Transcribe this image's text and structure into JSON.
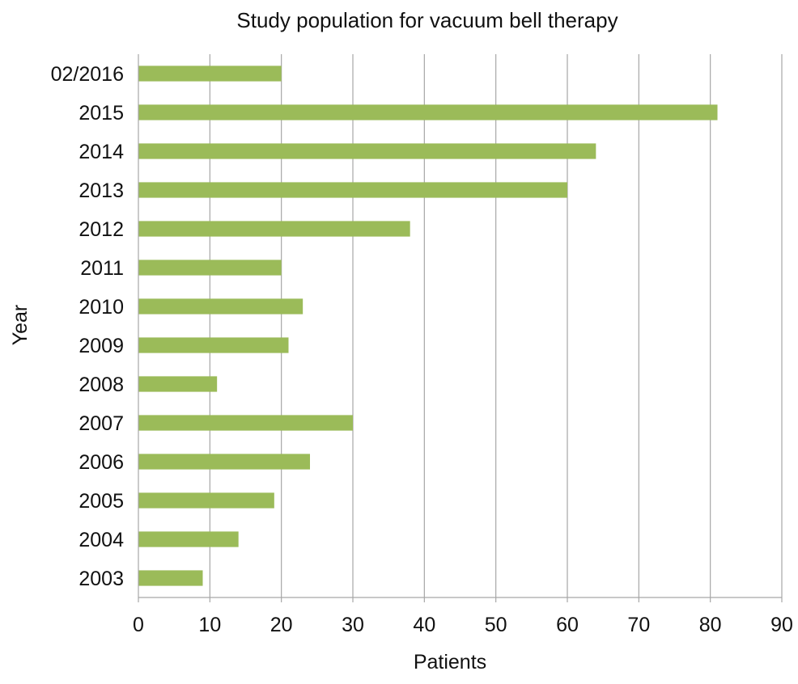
{
  "chart_data": {
    "type": "bar",
    "orientation": "horizontal",
    "title": "Study population for vacuum bell therapy",
    "xlabel": "Patients",
    "ylabel": "Year",
    "categories": [
      "02/2016",
      "2015",
      "2014",
      "2013",
      "2012",
      "2011",
      "2010",
      "2009",
      "2008",
      "2007",
      "2006",
      "2005",
      "2004",
      "2003"
    ],
    "values": [
      20,
      81,
      64,
      60,
      38,
      20,
      23,
      21,
      11,
      30,
      24,
      19,
      14,
      9
    ],
    "xlim": [
      0,
      90
    ],
    "xticks": [
      "0",
      "10",
      "20",
      "30",
      "40",
      "50",
      "60",
      "70",
      "80",
      "90"
    ],
    "grid": true,
    "legend": "none",
    "bar_color": "#9bbb59",
    "grid_color": "#a6a6a6"
  }
}
